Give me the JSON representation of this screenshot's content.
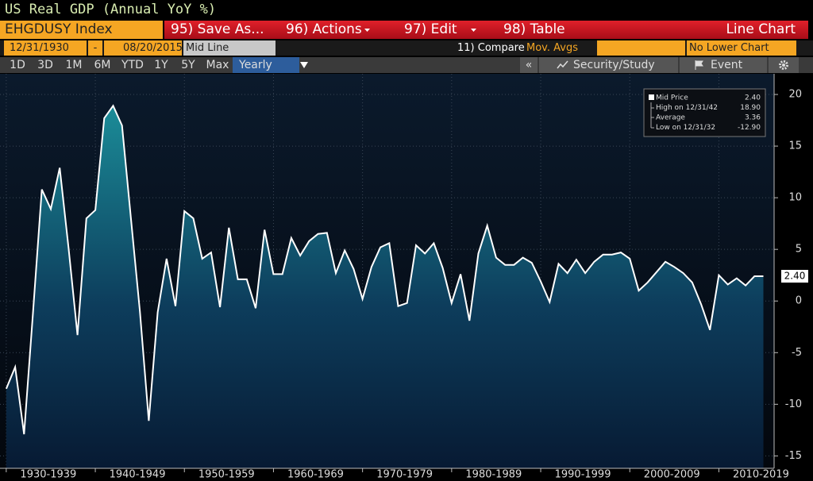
{
  "header": {
    "title": "US Real GDP (Annual YoY %)",
    "ticker": "EHGDUSY Index",
    "menu": [
      "95) Save As...",
      "96) Actions",
      "97) Edit",
      "98) Table"
    ],
    "chart_kind": "Line Chart"
  },
  "controls": {
    "start_date": "12/31/1930",
    "date_sep": "-",
    "end_date": "08/20/2015",
    "mid_line": "Mid Line",
    "compare": "11) Compare",
    "mov_avgs": "Mov. Avgs",
    "lower_chart": "No Lower Chart"
  },
  "periods": [
    "1D",
    "3D",
    "1M",
    "6M",
    "YTD",
    "1Y",
    "5Y",
    "Max",
    "Yearly"
  ],
  "tools": {
    "collapse": "«",
    "study": "Security/Study",
    "event": "Event"
  },
  "chart_data": {
    "type": "line",
    "x": [
      1930,
      1931,
      1932,
      1933,
      1934,
      1935,
      1936,
      1937,
      1938,
      1939,
      1940,
      1941,
      1942,
      1943,
      1944,
      1945,
      1946,
      1947,
      1948,
      1949,
      1950,
      1951,
      1952,
      1953,
      1954,
      1955,
      1956,
      1957,
      1958,
      1959,
      1960,
      1961,
      1962,
      1963,
      1964,
      1965,
      1966,
      1967,
      1968,
      1969,
      1970,
      1971,
      1972,
      1973,
      1974,
      1975,
      1976,
      1977,
      1978,
      1979,
      1980,
      1981,
      1982,
      1983,
      1984,
      1985,
      1986,
      1987,
      1988,
      1989,
      1990,
      1991,
      1992,
      1993,
      1994,
      1995,
      1996,
      1997,
      1998,
      1999,
      2000,
      2001,
      2002,
      2003,
      2004,
      2005,
      2006,
      2007,
      2008,
      2009,
      2010,
      2011,
      2012,
      2013,
      2014,
      2015
    ],
    "series": [
      {
        "name": "Mid Price",
        "color": "#ffffff",
        "values": [
          -8.5,
          -6.4,
          -12.9,
          -1.2,
          10.8,
          8.9,
          12.9,
          5.1,
          -3.3,
          8.0,
          8.8,
          17.7,
          18.9,
          17.0,
          8.0,
          -1.0,
          -11.6,
          -1.1,
          4.1,
          -0.5,
          8.7,
          8.0,
          4.1,
          4.7,
          -0.6,
          7.1,
          2.1,
          2.1,
          -0.7,
          6.9,
          2.6,
          2.6,
          6.1,
          4.4,
          5.8,
          6.5,
          6.6,
          2.7,
          4.9,
          3.1,
          0.2,
          3.3,
          5.2,
          5.6,
          -0.5,
          -0.2,
          5.4,
          4.6,
          5.6,
          3.2,
          -0.2,
          2.6,
          -1.9,
          4.6,
          7.3,
          4.2,
          3.5,
          3.5,
          4.2,
          3.7,
          1.9,
          -0.1,
          3.6,
          2.7,
          4.0,
          2.7,
          3.8,
          4.5,
          4.5,
          4.7,
          4.1,
          1.0,
          1.8,
          2.8,
          3.8,
          3.3,
          2.7,
          1.8,
          -0.3,
          -2.8,
          2.5,
          1.6,
          2.2,
          1.5,
          2.4,
          2.4
        ]
      }
    ],
    "xlim": [
      1929.3,
      2016.2
    ],
    "xticks": [
      {
        "value": 1930,
        "label": "1930-1939"
      },
      {
        "value": 1940,
        "label": "1940-1949"
      },
      {
        "value": 1950,
        "label": "1950-1959"
      },
      {
        "value": 1960,
        "label": "1960-1969"
      },
      {
        "value": 1970,
        "label": "1970-1979"
      },
      {
        "value": 1980,
        "label": "1980-1989"
      },
      {
        "value": 1990,
        "label": "1990-1999"
      },
      {
        "value": 2000,
        "label": "2000-2009"
      },
      {
        "value": 2010,
        "label": "2010-2019"
      }
    ],
    "ylim": [
      -16.2,
      22
    ],
    "yticks": [
      -15,
      -10,
      -5,
      0,
      5,
      10,
      15,
      20
    ],
    "last_value_label": "2.40",
    "stats": [
      {
        "label": "Mid Price",
        "value": "2.40"
      },
      {
        "label": "High on 12/31/42",
        "value": "18.90"
      },
      {
        "label": "Average",
        "value": "3.36"
      },
      {
        "label": "Low on 12/31/32",
        "value": "-12.90"
      }
    ],
    "grid": true
  }
}
